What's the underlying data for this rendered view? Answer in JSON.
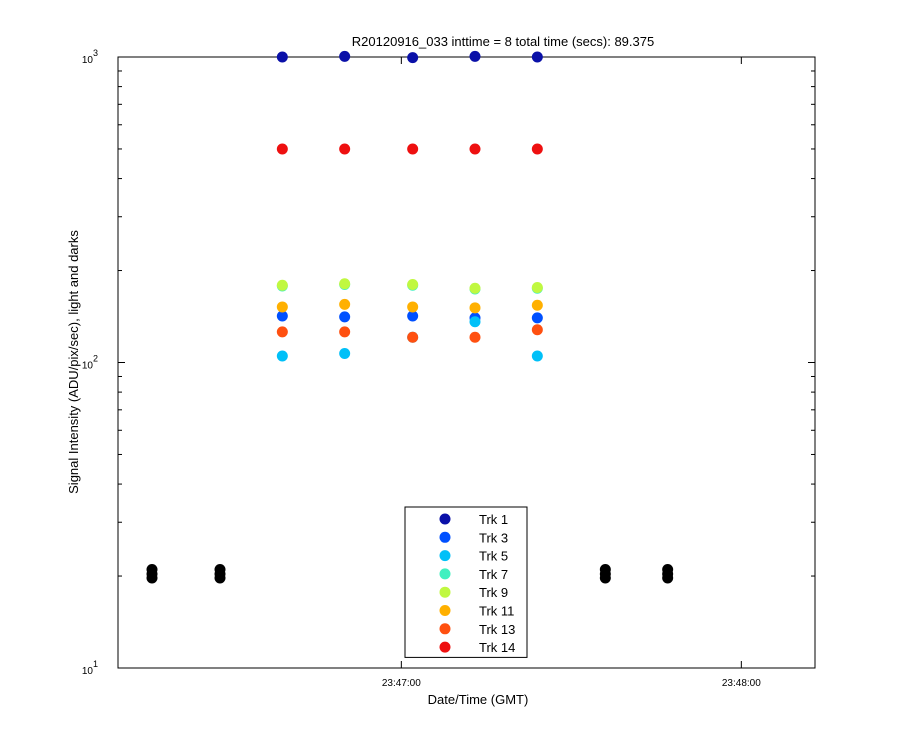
{
  "chart_data": {
    "type": "scatter",
    "title": "R20120916_033 inttime = 8 total time (secs): 89.375",
    "x_label": "Date/Time (GMT)",
    "y_label": "Signal Intensity (ADU/pix/sec), light and darks",
    "log_y": true,
    "xlim": [
      "23:46:10",
      "23:48:13"
    ],
    "xticks": [
      "23:47:00",
      "23:48:00"
    ],
    "ylim": [
      10,
      1000
    ],
    "yticks": [
      {
        "value": 10,
        "label": "10",
        "exponent": "1"
      },
      {
        "value": 100,
        "label": "10",
        "exponent": "2"
      },
      {
        "value": 1000,
        "label": "10",
        "exponent": "3"
      }
    ],
    "yminorticks": [
      20,
      30,
      40,
      50,
      60,
      70,
      80,
      90,
      200,
      300,
      400,
      500,
      600,
      700,
      800,
      900
    ],
    "legend": "bottom-center",
    "series": [
      {
        "color": "#000000",
        "x": [
          "23:46:16",
          "23:46:16",
          "23:46:16",
          "23:46:28",
          "23:46:28",
          "23:46:28",
          "23:47:36",
          "23:47:36",
          "23:47:36",
          "23:47:47",
          "23:47:47",
          "23:47:47"
        ],
        "values": [
          19.7,
          20.3,
          21,
          19.7,
          20.3,
          21,
          19.7,
          20.3,
          21,
          19.7,
          20.3,
          21
        ]
      },
      {
        "name": "Trk 1",
        "color": "#0a10a8",
        "x": [
          "23:46:39",
          "23:46:50",
          "23:47:02",
          "23:47:13",
          "23:47:24"
        ],
        "values": [
          1000,
          1005,
          995,
          1005,
          1000
        ]
      },
      {
        "name": "Trk 3",
        "color": "#0050ff",
        "x": [
          "23:46:39",
          "23:46:50",
          "23:47:02",
          "23:47:13",
          "23:47:24"
        ],
        "values": [
          142,
          141,
          142,
          140,
          140
        ]
      },
      {
        "name": "Trk 5",
        "color": "#00c0f8",
        "x": [
          "23:46:39",
          "23:46:50",
          "23:47:02",
          "23:47:13",
          "23:47:24"
        ],
        "values": [
          105,
          107,
          121,
          136,
          105
        ]
      },
      {
        "name": "Trk 7",
        "color": "#40f0c0",
        "x": [
          "23:46:39",
          "23:46:50",
          "23:47:02",
          "23:47:13",
          "23:47:24"
        ],
        "values": [
          178,
          180,
          179,
          174,
          175
        ]
      },
      {
        "name": "Trk 9",
        "color": "#c0f840",
        "x": [
          "23:46:39",
          "23:46:50",
          "23:47:02",
          "23:47:13",
          "23:47:24"
        ],
        "values": [
          179,
          181,
          180,
          175,
          176
        ]
      },
      {
        "name": "Trk 11",
        "color": "#ffb000",
        "x": [
          "23:46:39",
          "23:46:50",
          "23:47:02",
          "23:47:13",
          "23:47:24"
        ],
        "values": [
          152,
          155,
          152,
          151,
          154
        ]
      },
      {
        "name": "Trk 13",
        "color": "#ff5010",
        "x": [
          "23:46:39",
          "23:46:50",
          "23:47:02",
          "23:47:13",
          "23:47:24"
        ],
        "values": [
          126,
          126,
          121,
          121,
          128
        ]
      },
      {
        "name": "Trk 14",
        "color": "#ee1010",
        "x": [
          "23:46:39",
          "23:46:50",
          "23:47:02",
          "23:47:13",
          "23:47:24"
        ],
        "values": [
          500,
          500,
          500,
          500,
          500
        ]
      }
    ]
  }
}
